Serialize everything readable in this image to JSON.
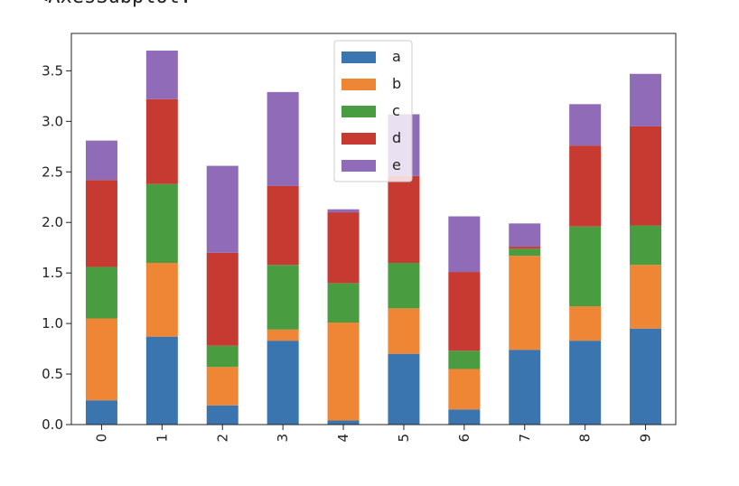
{
  "header": {
    "cutoff_text": "<AxesSubplot:"
  },
  "chart_data": {
    "type": "bar",
    "stacked": true,
    "categories": [
      "0",
      "1",
      "2",
      "3",
      "4",
      "5",
      "6",
      "7",
      "8",
      "9"
    ],
    "series": [
      {
        "name": "a",
        "color": "#3a75b0",
        "values": [
          0.24,
          0.87,
          0.19,
          0.83,
          0.04,
          0.7,
          0.15,
          0.74,
          0.83,
          0.95
        ]
      },
      {
        "name": "b",
        "color": "#ef8636",
        "values": [
          0.81,
          0.73,
          0.38,
          0.11,
          0.97,
          0.45,
          0.4,
          0.93,
          0.34,
          0.63
        ]
      },
      {
        "name": "c",
        "color": "#4a9c40",
        "values": [
          0.51,
          0.78,
          0.21,
          0.64,
          0.39,
          0.45,
          0.18,
          0.07,
          0.79,
          0.39
        ]
      },
      {
        "name": "d",
        "color": "#c63a32",
        "values": [
          0.86,
          0.84,
          0.92,
          0.78,
          0.7,
          0.86,
          0.78,
          0.02,
          0.8,
          0.98
        ]
      },
      {
        "name": "e",
        "color": "#8f6bb8",
        "values": [
          0.39,
          0.48,
          0.86,
          0.93,
          0.03,
          0.61,
          0.55,
          0.23,
          0.41,
          0.52
        ]
      }
    ],
    "ylim": [
      0,
      3.87
    ],
    "yticks": [
      "0.0",
      "0.5",
      "1.0",
      "1.5",
      "2.0",
      "2.5",
      "3.0",
      "3.5"
    ],
    "xlabel": "",
    "ylabel": "",
    "grid": false,
    "legend_position": "top-center"
  }
}
